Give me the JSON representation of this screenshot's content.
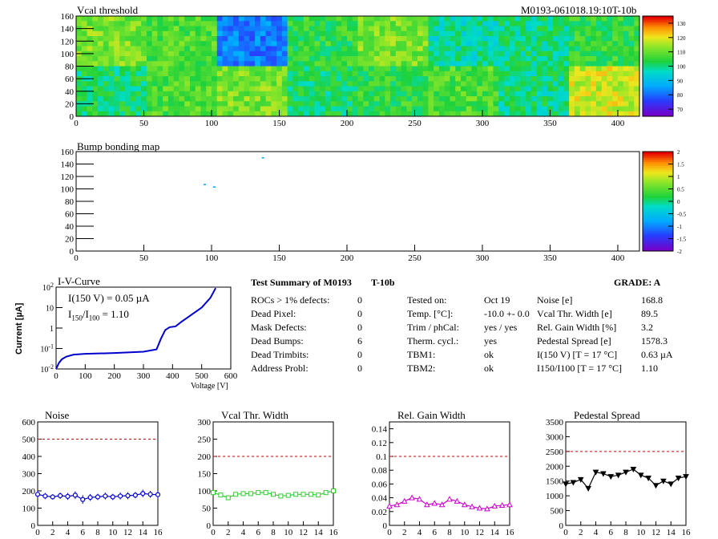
{
  "vcal_map": {
    "title": "Vcal threshold",
    "run_label": "M0193-061018.19:10T-10b",
    "x_ticks": [
      "0",
      "50",
      "100",
      "150",
      "200",
      "250",
      "300",
      "350",
      "400"
    ],
    "y_ticks": [
      "0",
      "20",
      "40",
      "60",
      "80",
      "100",
      "120",
      "140",
      "160"
    ],
    "z_ticks": [
      "70",
      "80",
      "90",
      "100",
      "110",
      "120",
      "130"
    ]
  },
  "bump_map": {
    "title": "Bump bonding map",
    "x_ticks": [
      "0",
      "50",
      "100",
      "150",
      "200",
      "250",
      "300",
      "350",
      "400"
    ],
    "y_ticks": [
      "0",
      "20",
      "40",
      "60",
      "80",
      "100",
      "120",
      "140",
      "160"
    ],
    "z_ticks": [
      "-2",
      "-1.5",
      "-1",
      "-0.5",
      "0",
      "0.5",
      "1",
      "1.5",
      "2"
    ]
  },
  "iv": {
    "title": "I-V-Curve",
    "line1": "I(150 V) = 0.05 µA",
    "line2_pre": "I",
    "line2_sub1": "150",
    "line2_mid": "/I",
    "line2_sub2": "100",
    "line2_post": " =  1.10",
    "ylabel": "Current [µA]",
    "xlabel": "Voltage [V]",
    "x_ticks": [
      "0",
      "100",
      "200",
      "300",
      "400",
      "500",
      "600"
    ],
    "y_ticks": [
      "10-2",
      "10-1",
      "1",
      "10",
      "102"
    ]
  },
  "summary": {
    "header": "Test Summary of M0193",
    "tag": "T-10b",
    "grade": "GRADE:  A",
    "left": [
      {
        "label": "ROCs > 1% defects:",
        "value": "0"
      },
      {
        "label": "Dead Pixel:",
        "value": "0"
      },
      {
        "label": "Mask Defects:",
        "value": "0"
      },
      {
        "label": "Dead Bumps:",
        "value": "6"
      },
      {
        "label": "Dead Trimbits:",
        "value": "0"
      },
      {
        "label": "Address Probl:",
        "value": "0"
      }
    ],
    "mid": [
      {
        "label": "Tested on:",
        "value": "Oct 19"
      },
      {
        "label": "Temp. [°C]:",
        "value": "-10.0 +- 0.0"
      },
      {
        "label": "Trim / phCal:",
        "value": "yes / yes"
      },
      {
        "label": "Therm. cycl.:",
        "value": "yes"
      },
      {
        "label": "TBM1:",
        "value": "ok"
      },
      {
        "label": "TBM2:",
        "value": "ok"
      }
    ],
    "right": [
      {
        "label": "Noise [e]",
        "value": "168.8"
      },
      {
        "label": "Vcal Thr. Width [e]",
        "value": "89.5"
      },
      {
        "label": "Rel. Gain Width [%]",
        "value": "3.2"
      },
      {
        "label": "Pedestal Spread [e]",
        "value": "1578.3"
      },
      {
        "label": "I(150 V) [T = 17 °C]",
        "value": "0.63 µA"
      },
      {
        "label": "I150/I100  [T = 17 °C]",
        "value": "1.10"
      }
    ]
  },
  "chart_data": [
    {
      "type": "heatmap",
      "title": "Vcal threshold",
      "xlim": [
        0,
        416
      ],
      "ylim": [
        0,
        160
      ],
      "zlim": [
        65,
        135
      ],
      "roc_mean_values": {
        "top_row": [
          112,
          108,
          82,
          105,
          112,
          98,
          100,
          105
        ],
        "bottom_row": [
          102,
          108,
          112,
          102,
          105,
          108,
          100,
          118
        ]
      }
    },
    {
      "type": "heatmap",
      "title": "Bump bonding map",
      "xlim": [
        0,
        416
      ],
      "ylim": [
        0,
        160
      ],
      "zlim": [
        -2,
        2
      ],
      "dead_bump_points": [
        [
          95,
          107
        ],
        [
          102,
          103
        ],
        [
          138,
          150
        ]
      ]
    },
    {
      "type": "line",
      "title": "I-V-Curve",
      "xlabel": "Voltage [V]",
      "ylabel": "Current [µA]",
      "xlim": [
        0,
        600
      ],
      "ylim": [
        0.01,
        100
      ],
      "yscale": "log",
      "points": [
        [
          0,
          0.01
        ],
        [
          10,
          0.02
        ],
        [
          20,
          0.03
        ],
        [
          35,
          0.04
        ],
        [
          60,
          0.05
        ],
        [
          100,
          0.055
        ],
        [
          200,
          0.06
        ],
        [
          300,
          0.07
        ],
        [
          345,
          0.09
        ],
        [
          360,
          0.3
        ],
        [
          375,
          0.8
        ],
        [
          390,
          1.1
        ],
        [
          410,
          1.2
        ],
        [
          430,
          2.0
        ],
        [
          460,
          4.0
        ],
        [
          500,
          10
        ],
        [
          530,
          30
        ],
        [
          548,
          90
        ]
      ]
    },
    {
      "type": "scatter",
      "title": "Noise",
      "xlim": [
        0,
        16
      ],
      "ylim": [
        0,
        600
      ],
      "ref_line": 500,
      "x": [
        0,
        1,
        2,
        3,
        4,
        5,
        6,
        7,
        8,
        9,
        10,
        11,
        12,
        13,
        14,
        15,
        16
      ],
      "values": [
        180,
        170,
        165,
        172,
        168,
        175,
        150,
        162,
        165,
        170,
        165,
        170,
        172,
        175,
        185,
        180,
        178
      ],
      "errors": [
        20,
        18,
        15,
        18,
        20,
        22,
        25,
        20,
        18,
        20,
        18,
        20,
        20,
        18,
        22,
        20,
        20
      ]
    },
    {
      "type": "line",
      "title": "Vcal Thr. Width",
      "xlim": [
        0,
        16
      ],
      "ylim": [
        0,
        300
      ],
      "ref_line": 200,
      "x": [
        0,
        1,
        2,
        3,
        4,
        5,
        6,
        7,
        8,
        9,
        10,
        11,
        12,
        13,
        14,
        15,
        16
      ],
      "values": [
        95,
        88,
        80,
        90,
        92,
        92,
        95,
        95,
        90,
        85,
        87,
        90,
        90,
        90,
        88,
        95,
        100
      ]
    },
    {
      "type": "line",
      "title": "Rel. Gain Width",
      "xlim": [
        0,
        16
      ],
      "ylim": [
        0,
        0.15
      ],
      "ref_line": 0.1,
      "x": [
        0,
        1,
        2,
        3,
        4,
        5,
        6,
        7,
        8,
        9,
        10,
        11,
        12,
        13,
        14,
        15,
        16
      ],
      "values": [
        0.028,
        0.03,
        0.035,
        0.04,
        0.038,
        0.03,
        0.032,
        0.03,
        0.038,
        0.035,
        0.03,
        0.027,
        0.025,
        0.024,
        0.028,
        0.029,
        0.03
      ]
    },
    {
      "type": "line",
      "title": "Pedestal Spread",
      "xlim": [
        0,
        16
      ],
      "ylim": [
        0,
        3500
      ],
      "ref_line": 2500,
      "x": [
        0,
        1,
        2,
        3,
        4,
        5,
        6,
        7,
        8,
        9,
        10,
        11,
        12,
        13,
        14,
        15,
        16
      ],
      "values": [
        1400,
        1450,
        1550,
        1250,
        1800,
        1750,
        1650,
        1700,
        1800,
        1900,
        1700,
        1600,
        1350,
        1500,
        1400,
        1600,
        1650
      ]
    }
  ],
  "small_plots": {
    "noise": {
      "title": "Noise",
      "y_ticks": [
        "0",
        "100",
        "200",
        "300",
        "400",
        "500",
        "600"
      ]
    },
    "vcal": {
      "title": "Vcal Thr. Width",
      "y_ticks": [
        "0",
        "50",
        "100",
        "150",
        "200",
        "250",
        "300"
      ]
    },
    "gain": {
      "title": "Rel. Gain Width",
      "y_ticks": [
        "0",
        "0.02",
        "0.04",
        "0.06",
        "0.08",
        "0.1",
        "0.12",
        "0.14"
      ]
    },
    "ped": {
      "title": "Pedestal Spread",
      "y_ticks": [
        "0",
        "500",
        "1000",
        "1500",
        "2000",
        "2500",
        "3000",
        "3500"
      ]
    },
    "x_ticks": [
      "0",
      "2",
      "4",
      "6",
      "8",
      "10",
      "12",
      "14",
      "16"
    ]
  },
  "colors": {
    "noise": "#0000cc",
    "vcal": "#33cc33",
    "gain": "#cc00cc",
    "ped": "#000000",
    "ref": "#cc0000",
    "iv": "#0000cc"
  }
}
